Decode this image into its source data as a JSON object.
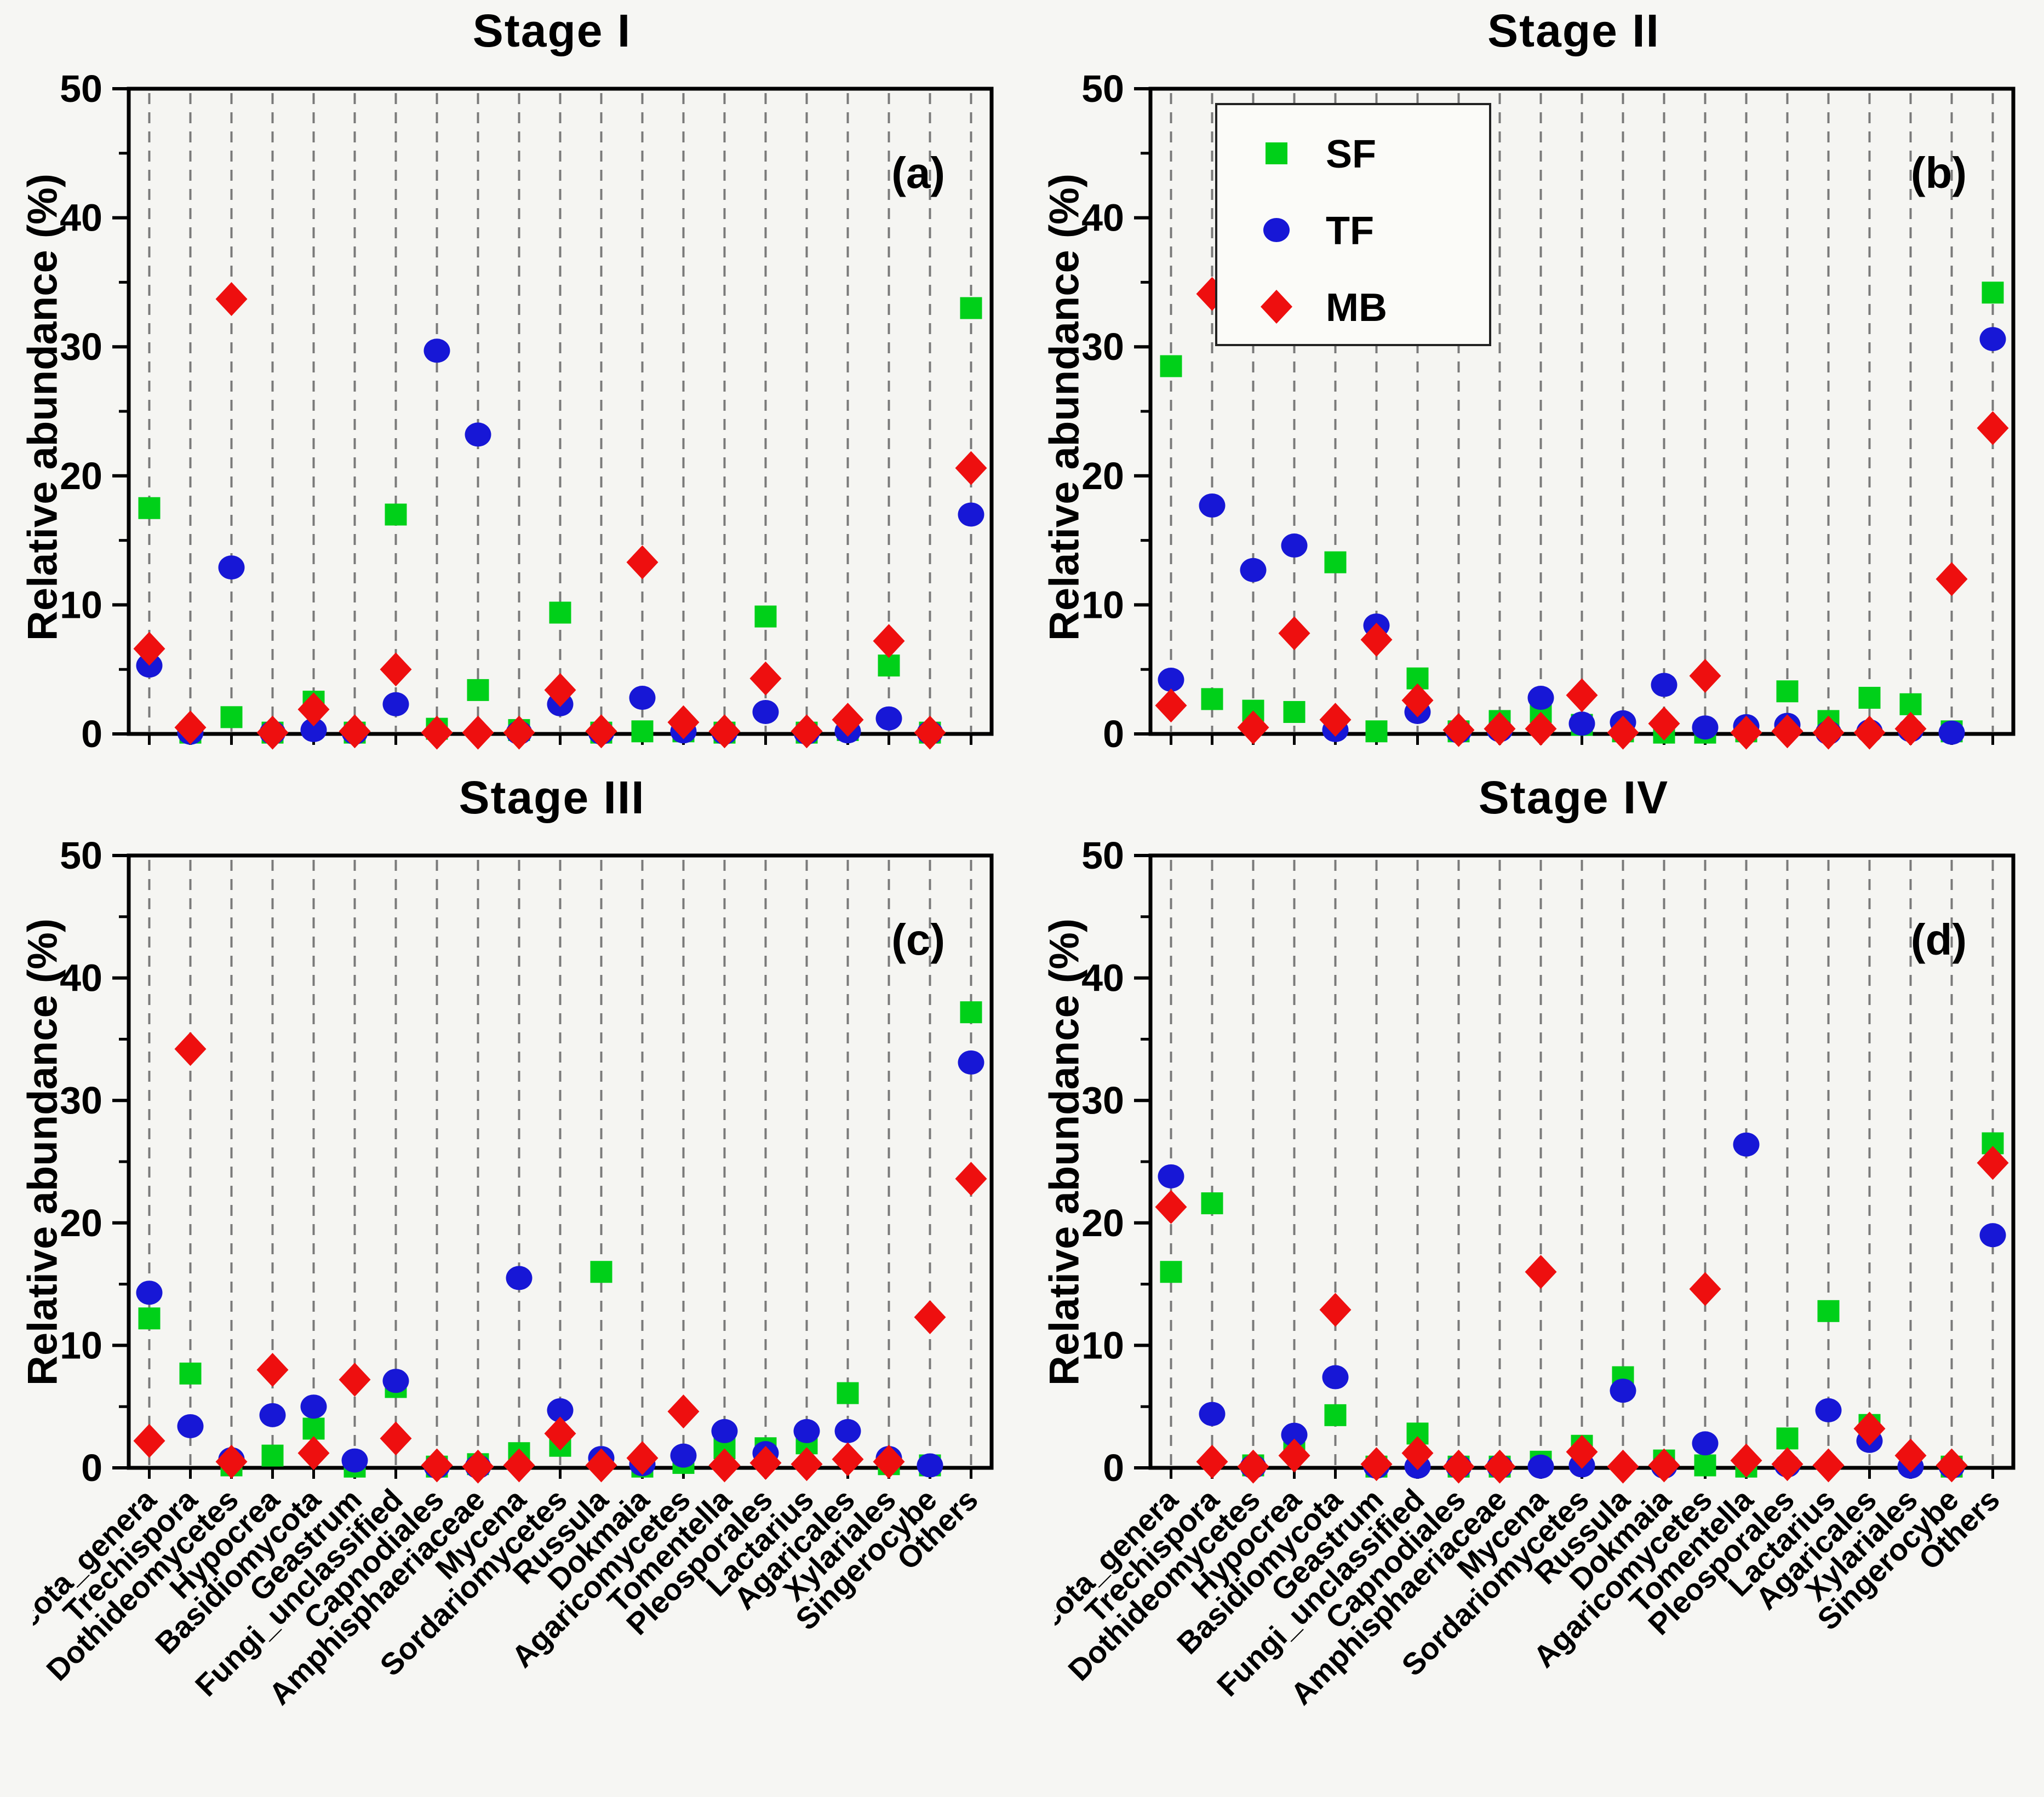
{
  "figure": {
    "ylabel": "Relative abundance (%)",
    "background": "#f6f6f3",
    "plot_background": "#f5f5f2",
    "axis_color": "#000000",
    "gridline_color": "#7a7a7a",
    "legend": {
      "position": "top-left-panel-b",
      "items": [
        {
          "label": "SF",
          "marker": "square",
          "color": "#00d019"
        },
        {
          "label": "TF",
          "marker": "circle",
          "color": "#1717d6"
        },
        {
          "label": "MB",
          "marker": "diamond",
          "color": "#ee0f0f"
        }
      ]
    }
  },
  "chart_data": [
    {
      "type": "scatter",
      "title": "Stage I",
      "panel_label": "(a)",
      "ylabel": "Relative abundance (%)",
      "ylim": [
        0,
        50
      ],
      "yticks": [
        0,
        10,
        20,
        30,
        40,
        50
      ],
      "grid": "vertical-dashed",
      "categories": [
        "Ascomycota_genera",
        "Trechispora",
        "Dothideomycetes",
        "Hypocrea",
        "Basidiomycota",
        "Geastrum",
        "Fungi_unclassified",
        "Capnodiales",
        "Amphisphaeriaceae",
        "Mycena",
        "Sordariomycetes",
        "Russula",
        "Dokmaia",
        "Agaricomycetes",
        "Tomentella",
        "Pleosporales",
        "Lactarius",
        "Agaricales",
        "Xylariales",
        "Singerocybe",
        "Others"
      ],
      "series": [
        {
          "name": "SF",
          "marker": "square",
          "values": [
            17.5,
            0.1,
            1.3,
            0.1,
            2.5,
            0.1,
            17.0,
            0.4,
            3.4,
            0.3,
            9.4,
            0.1,
            0.2,
            0.2,
            0.1,
            9.1,
            0.1,
            0.3,
            5.3,
            0.1,
            33.0
          ]
        },
        {
          "name": "TF",
          "marker": "circle",
          "values": [
            5.3,
            0.1,
            12.9,
            0.1,
            0.3,
            0.1,
            2.3,
            29.7,
            23.2,
            0.1,
            2.3,
            0.1,
            2.8,
            0.2,
            0.1,
            1.7,
            0.1,
            0.2,
            1.2,
            0.1,
            17.0
          ]
        },
        {
          "name": "MB",
          "marker": "diamond",
          "values": [
            6.6,
            0.5,
            33.7,
            0.1,
            1.9,
            0.2,
            5.0,
            0.1,
            0.1,
            0.1,
            3.4,
            0.2,
            13.3,
            0.9,
            0.2,
            4.3,
            0.2,
            1.1,
            7.2,
            0.1,
            20.6
          ]
        }
      ]
    },
    {
      "type": "scatter",
      "title": "Stage II",
      "panel_label": "(b)",
      "ylabel": "Relative abundance (%)",
      "ylim": [
        0,
        50
      ],
      "yticks": [
        0,
        10,
        20,
        30,
        40,
        50
      ],
      "grid": "vertical-dashed",
      "show_legend": true,
      "categories": [
        "Ascomycota_genera",
        "Trechispora",
        "Dothideomycetes",
        "Hypocrea",
        "Basidiomycota",
        "Geastrum",
        "Fungi_unclassified",
        "Capnodiales",
        "Amphisphaeriaceae",
        "Mycena",
        "Sordariomycetes",
        "Russula",
        "Dokmaia",
        "Agaricomycetes",
        "Tomentella",
        "Pleosporales",
        "Lactarius",
        "Agaricales",
        "Xylariales",
        "Singerocybe",
        "Others"
      ],
      "series": [
        {
          "name": "SF",
          "marker": "square",
          "values": [
            28.5,
            2.7,
            1.8,
            1.7,
            13.3,
            0.2,
            4.3,
            0.2,
            1.0,
            1.7,
            0.7,
            0.2,
            0.1,
            0.1,
            0.2,
            3.3,
            1.0,
            2.8,
            2.3,
            0.2,
            34.2
          ]
        },
        {
          "name": "TF",
          "marker": "circle",
          "values": [
            4.2,
            17.7,
            12.7,
            14.6,
            0.3,
            8.4,
            1.7,
            0.2,
            0.3,
            2.8,
            0.8,
            0.9,
            3.8,
            0.5,
            0.6,
            0.7,
            0.1,
            0.2,
            0.3,
            0.1,
            30.6
          ]
        },
        {
          "name": "MB",
          "marker": "diamond",
          "values": [
            2.2,
            34.1,
            0.5,
            7.8,
            1.1,
            7.3,
            2.6,
            0.3,
            0.4,
            0.4,
            3.0,
            0.1,
            0.8,
            4.5,
            0.1,
            0.2,
            0.1,
            0.1,
            0.4,
            12.0,
            23.7
          ]
        }
      ]
    },
    {
      "type": "scatter",
      "title": "Stage III",
      "panel_label": "(c)",
      "ylabel": "Relative abundance (%)",
      "ylim": [
        0,
        50
      ],
      "yticks": [
        0,
        10,
        20,
        30,
        40,
        50
      ],
      "grid": "vertical-dashed",
      "categories": [
        "Ascomycota_genera",
        "Trechispora",
        "Dothideomycetes",
        "Hypocrea",
        "Basidiomycota",
        "Geastrum",
        "Fungi_unclassified",
        "Capnodiales",
        "Amphisphaeriaceae",
        "Mycena",
        "Sordariomycetes",
        "Russula",
        "Dokmaia",
        "Agaricomycetes",
        "Tomentella",
        "Pleosporales",
        "Lactarius",
        "Agaricales",
        "Xylariales",
        "Singerocybe",
        "Others"
      ],
      "series": [
        {
          "name": "SF",
          "marker": "square",
          "values": [
            12.2,
            7.7,
            0.2,
            1.0,
            3.2,
            0.1,
            6.6,
            0.1,
            0.3,
            1.2,
            1.8,
            16.0,
            0.1,
            0.4,
            1.6,
            1.6,
            2.0,
            6.1,
            0.3,
            0.2,
            37.2
          ]
        },
        {
          "name": "TF",
          "marker": "circle",
          "values": [
            14.3,
            3.4,
            0.7,
            4.3,
            5.0,
            0.6,
            7.1,
            0.1,
            0.1,
            15.5,
            4.7,
            0.8,
            0.3,
            1.0,
            3.0,
            1.2,
            3.0,
            3.0,
            0.8,
            0.2,
            33.1
          ]
        },
        {
          "name": "MB",
          "marker": "diamond",
          "values": [
            2.2,
            34.2,
            0.5,
            8.0,
            1.2,
            7.2,
            2.4,
            0.2,
            0.1,
            0.2,
            2.8,
            0.2,
            0.8,
            4.6,
            0.2,
            0.4,
            0.3,
            0.7,
            0.5,
            12.3,
            23.6
          ]
        }
      ]
    },
    {
      "type": "scatter",
      "title": "Stage IV",
      "panel_label": "(d)",
      "ylabel": "Relative abundance (%)",
      "ylim": [
        0,
        50
      ],
      "yticks": [
        0,
        10,
        20,
        30,
        40,
        50
      ],
      "grid": "vertical-dashed",
      "categories": [
        "Ascomycota_genera",
        "Trechispora",
        "Dothideomycetes",
        "Hypocrea",
        "Basidiomycota",
        "Geastrum",
        "Fungi_unclassified",
        "Capnodiales",
        "Amphisphaeriaceae",
        "Mycena",
        "Sordariomycetes",
        "Russula",
        "Dokmaia",
        "Agaricomycetes",
        "Tomentella",
        "Pleosporales",
        "Lactarius",
        "Agaricales",
        "Xylariales",
        "Singerocybe",
        "Others"
      ],
      "series": [
        {
          "name": "SF",
          "marker": "square",
          "values": [
            16.0,
            21.6,
            0.2,
            1.6,
            4.3,
            0.1,
            2.8,
            0.1,
            0.1,
            0.5,
            1.8,
            7.4,
            0.6,
            0.2,
            0.1,
            2.4,
            12.8,
            3.5,
            0.4,
            0.1,
            26.5
          ]
        },
        {
          "name": "TF",
          "marker": "circle",
          "values": [
            23.8,
            4.4,
            0.1,
            2.7,
            7.4,
            0.1,
            0.1,
            0.1,
            0.1,
            0.1,
            0.2,
            6.3,
            0.1,
            2.0,
            26.4,
            0.2,
            4.7,
            2.2,
            0.1,
            0.1,
            19.0
          ]
        },
        {
          "name": "MB",
          "marker": "diamond",
          "values": [
            21.3,
            0.5,
            0.1,
            1.0,
            12.9,
            0.3,
            1.2,
            0.1,
            0.1,
            16.0,
            1.3,
            0.1,
            0.2,
            14.6,
            0.6,
            0.3,
            0.2,
            3.2,
            1.0,
            0.2,
            24.9
          ]
        }
      ]
    }
  ]
}
